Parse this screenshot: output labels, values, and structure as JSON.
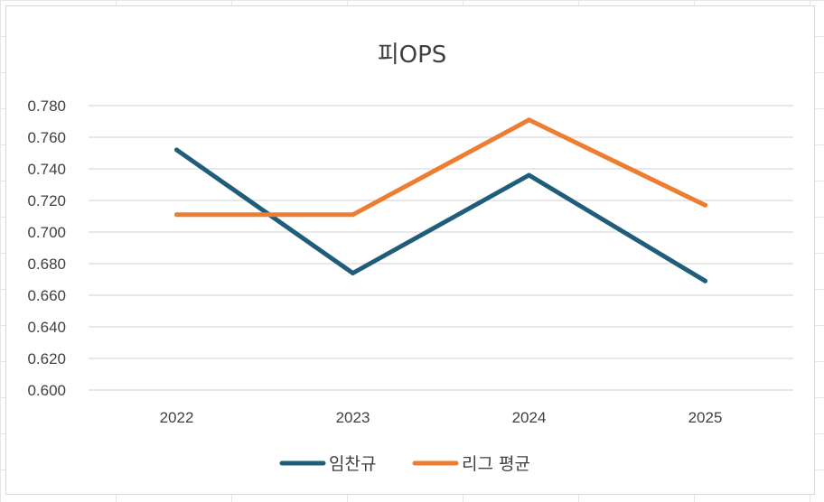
{
  "chart_data": {
    "type": "line",
    "title": "피OPS",
    "xlabel": "",
    "ylabel": "",
    "categories": [
      "2022",
      "2023",
      "2024",
      "2025"
    ],
    "ylim": [
      0.6,
      0.78
    ],
    "yticks": [
      "0.780",
      "0.760",
      "0.740",
      "0.720",
      "0.700",
      "0.680",
      "0.660",
      "0.640",
      "0.620",
      "0.600"
    ],
    "grid": true,
    "legend_position": "bottom",
    "series": [
      {
        "name": "임찬규",
        "values": [
          0.752,
          0.674,
          0.736,
          0.669
        ],
        "color": "#1f5d7a"
      },
      {
        "name": "리그 평균",
        "values": [
          0.711,
          0.711,
          0.771,
          0.717
        ],
        "color": "#ed7d31"
      }
    ]
  }
}
